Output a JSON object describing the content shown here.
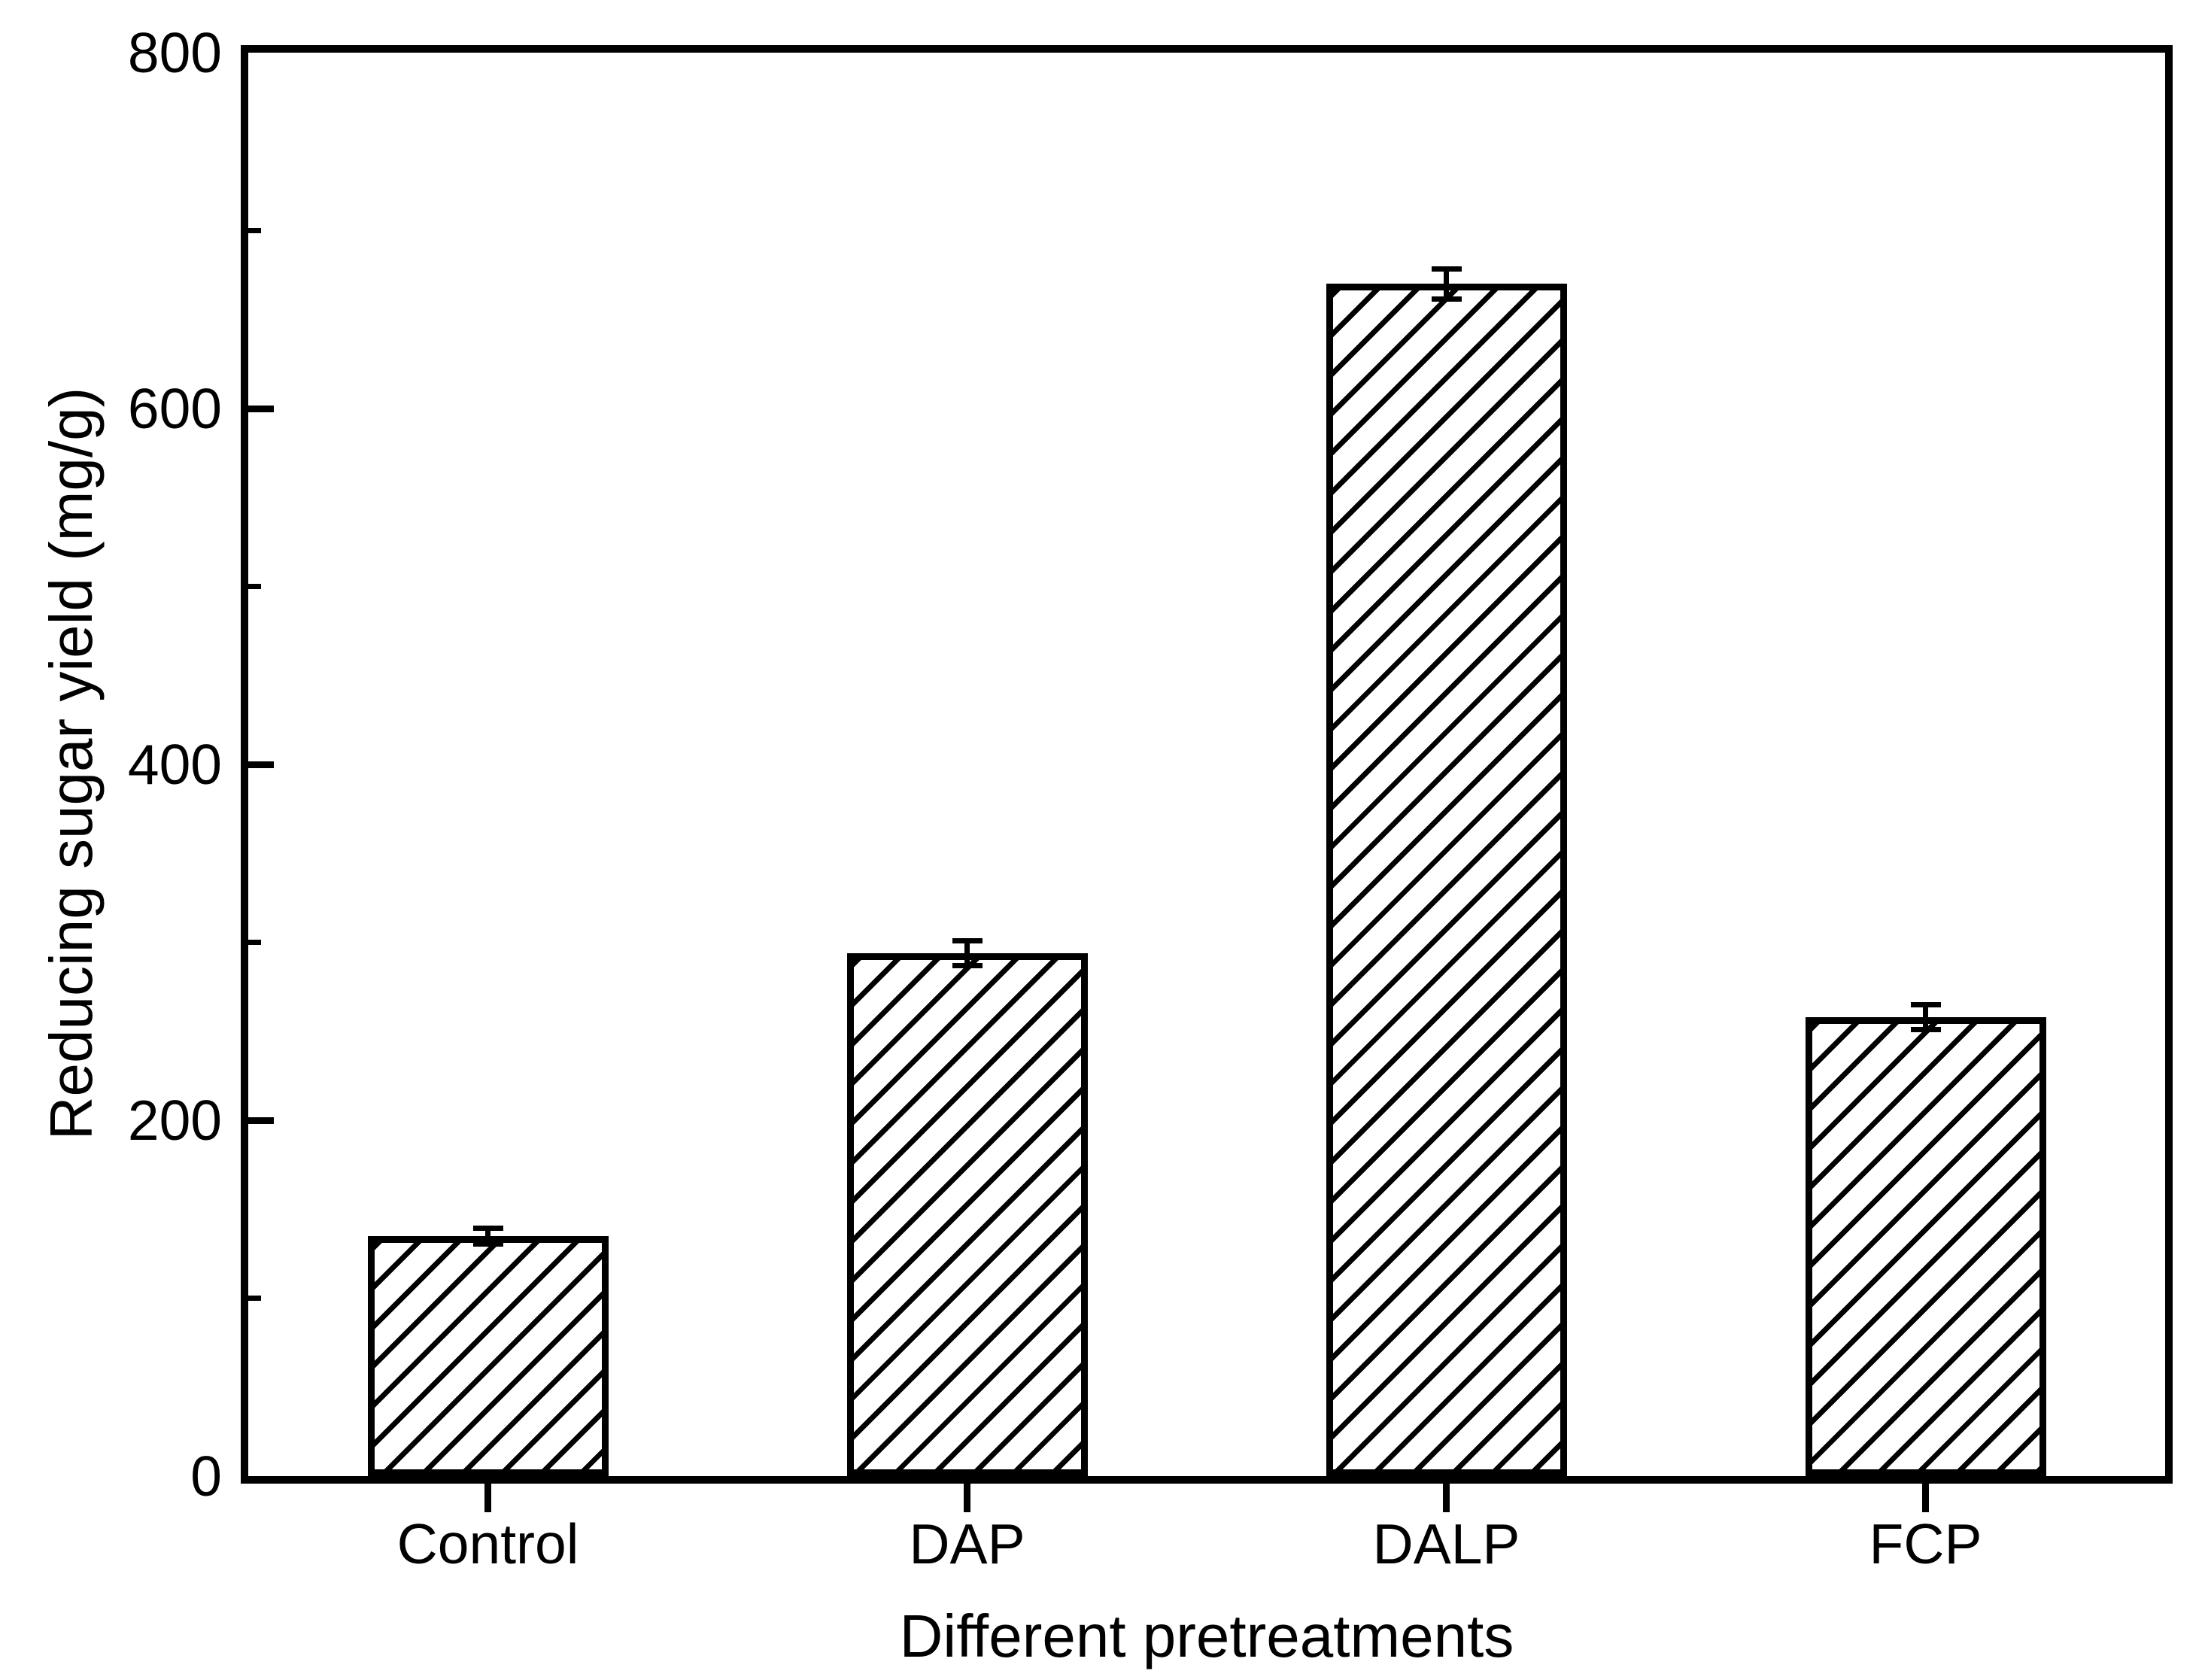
{
  "figure": {
    "background": "#ffffff",
    "foreground": "#000000"
  },
  "chart_data": {
    "type": "bar",
    "title": "",
    "categories": [
      "Control",
      "DAP",
      "DALP",
      "FCP"
    ],
    "values": [
      135,
      294,
      670,
      258
    ],
    "error_bars": [
      4.5,
      7,
      8.5,
      7
    ],
    "xlabel": "Different pretreatments",
    "ylabel": "Reducing sugar yield (mg/g)",
    "ylim": [
      0,
      800
    ],
    "y_major_ticks": [
      0,
      200,
      400,
      600,
      800
    ],
    "y_minor_ticks": [
      100,
      300,
      500,
      700
    ],
    "grid": false,
    "legend": "none",
    "bar_fill": "diagonal-hatch",
    "hatch_direction": "/",
    "bar_color": "#000000",
    "plot_background": "#ffffff"
  }
}
